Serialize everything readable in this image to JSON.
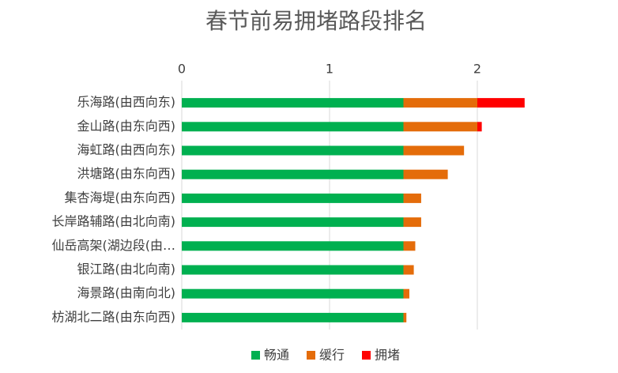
{
  "chart_data": {
    "type": "stacked-bar-horizontal",
    "title": "春节前易拥堵路段排名",
    "categories": [
      "乐海路(由西向东)",
      "金山路(由东向西)",
      "海虹路(由西向东)",
      "洪塘路(由东向西)",
      "集杏海堤(由东向西)",
      "长岸路辅路(由北向南)",
      "仙岳高架(湖边段(由…",
      "银江路(由北向南)",
      "海景路(由南向北)",
      "枋湖北二路(由东向西)"
    ],
    "series": [
      {
        "name": "畅通",
        "color": "#00b050",
        "values": [
          1.5,
          1.5,
          1.5,
          1.5,
          1.5,
          1.5,
          1.5,
          1.5,
          1.5,
          1.5
        ]
      },
      {
        "name": "缓行",
        "color": "#e46c0a",
        "values": [
          0.5,
          0.5,
          0.41,
          0.3,
          0.12,
          0.12,
          0.08,
          0.07,
          0.04,
          0.02
        ]
      },
      {
        "name": "拥堵",
        "color": "#ff0000",
        "values": [
          0.32,
          0.03,
          0,
          0,
          0,
          0,
          0,
          0,
          0,
          0
        ]
      }
    ],
    "xlim": [
      0,
      2.5
    ],
    "xticks": [
      0,
      1,
      2
    ],
    "grid": true,
    "legend": "bottom"
  }
}
